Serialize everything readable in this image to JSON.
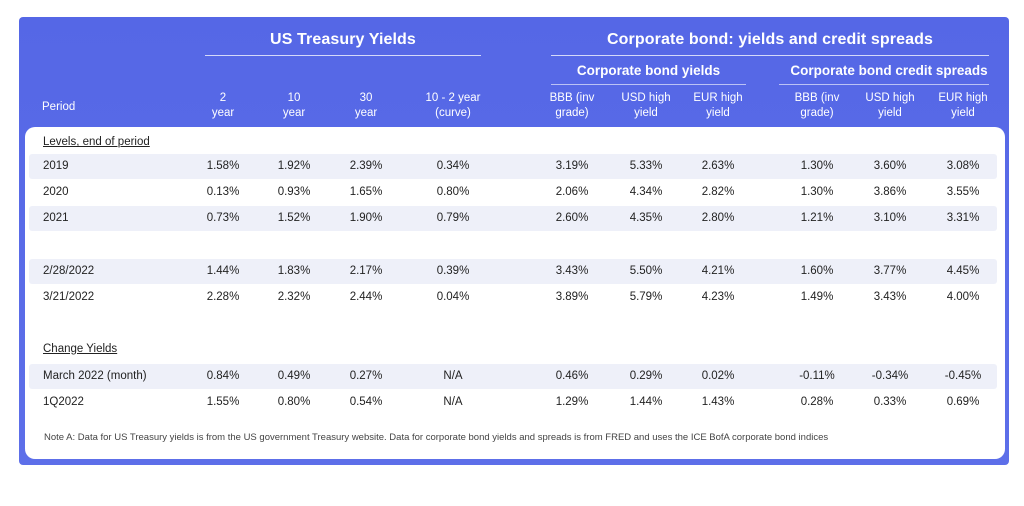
{
  "groups": {
    "treasury": "US Treasury Yields",
    "corporate": "Corporate bond: yields and credit spreads",
    "corp_yields": "Corporate bond yields",
    "corp_spreads": "Corporate bond credit spreads"
  },
  "period_header": "Period",
  "columns": [
    {
      "l1": "2",
      "l2": "year"
    },
    {
      "l1": "10",
      "l2": "year"
    },
    {
      "l1": "30",
      "l2": "year"
    },
    {
      "l1": "10 - 2 year",
      "l2": "(curve)"
    },
    {
      "l1": "BBB (inv",
      "l2": "grade)"
    },
    {
      "l1": "USD high",
      "l2": "yield"
    },
    {
      "l1": "EUR high",
      "l2": "yield"
    },
    {
      "l1": "BBB (inv",
      "l2": "grade)"
    },
    {
      "l1": "USD high",
      "l2": "yield"
    },
    {
      "l1": "EUR high",
      "l2": "yield"
    }
  ],
  "sections": {
    "levels": "Levels, end of period",
    "change": "Change Yields"
  },
  "rows": [
    {
      "label": "2019",
      "values": [
        "1.58%",
        "1.92%",
        "2.39%",
        "0.34%",
        "3.19%",
        "5.33%",
        "2.63%",
        "1.30%",
        "3.60%",
        "3.08%"
      ]
    },
    {
      "label": "2020",
      "values": [
        "0.13%",
        "0.93%",
        "1.65%",
        "0.80%",
        "2.06%",
        "4.34%",
        "2.82%",
        "1.30%",
        "3.86%",
        "3.55%"
      ]
    },
    {
      "label": "2021",
      "values": [
        "0.73%",
        "1.52%",
        "1.90%",
        "0.79%",
        "2.60%",
        "4.35%",
        "2.80%",
        "1.21%",
        "3.10%",
        "3.31%"
      ]
    },
    {
      "label": "2/28/2022",
      "values": [
        "1.44%",
        "1.83%",
        "2.17%",
        "0.39%",
        "3.43%",
        "5.50%",
        "4.21%",
        "1.60%",
        "3.77%",
        "4.45%"
      ]
    },
    {
      "label": "3/21/2022",
      "values": [
        "2.28%",
        "2.32%",
        "2.44%",
        "0.04%",
        "3.89%",
        "5.79%",
        "4.23%",
        "1.49%",
        "3.43%",
        "4.00%"
      ]
    },
    {
      "label": "March 2022 (month)",
      "values": [
        "0.84%",
        "0.49%",
        "0.27%",
        "N/A",
        "0.46%",
        "0.29%",
        "0.02%",
        "-0.11%",
        "-0.34%",
        "-0.45%"
      ]
    },
    {
      "label": "1Q2022",
      "values": [
        "1.55%",
        "0.80%",
        "0.54%",
        "N/A",
        "1.29%",
        "1.44%",
        "1.43%",
        "0.28%",
        "0.33%",
        "0.69%"
      ]
    }
  ],
  "note": "Note A:  Data for US Treasury yields is from the US government Treasury website.  Data for corporate bond yields and spreads is from FRED and uses the ICE BofA corporate bond indices"
}
